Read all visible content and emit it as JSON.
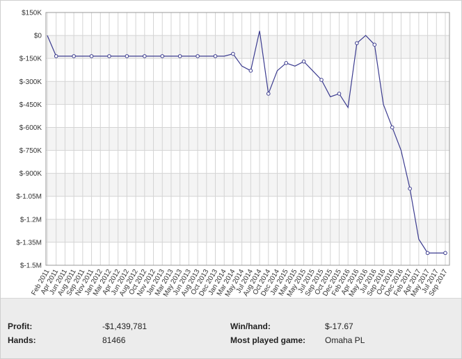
{
  "chart_data": {
    "type": "line",
    "categories": [
      "Feb 2011",
      "Apr 2011",
      "Jun 2011",
      "Aug 2011",
      "Sep 2011",
      "Nov 2011",
      "Jan 2012",
      "Mar 2012",
      "Apr 2012",
      "Jun 2012",
      "Aug 2012",
      "Oct 2012",
      "Nov 2012",
      "Jan 2013",
      "Mar 2013",
      "May 2013",
      "Jun 2013",
      "Aug 2013",
      "Oct 2013",
      "Dec 2013",
      "Jan 2014",
      "Mar 2014",
      "May 2014",
      "Jul 2014",
      "Aug 2014",
      "Oct 2014",
      "Dec 2014",
      "Jan 2015",
      "Mar 2015",
      "May 2015",
      "Jul 2015",
      "Sep 2015",
      "Oct 2015",
      "Dec 2015",
      "Feb 2016",
      "Apr 2016",
      "May 2016",
      "Jul 2016",
      "Sep 2016",
      "Oct 2016",
      "Dec 2016",
      "Feb 2017",
      "Apr 2017",
      "May 2017",
      "Jul 2017",
      "Sep 2017"
    ],
    "series": [
      {
        "color": "#3b3b8f",
        "values": [
          0,
          -135000,
          -135000,
          -135000,
          -135000,
          -135000,
          -135000,
          -135000,
          -135000,
          -135000,
          -135000,
          -135000,
          -135000,
          -135000,
          -135000,
          -135000,
          -135000,
          -135000,
          -135000,
          -135000,
          -135000,
          -120000,
          -200000,
          -230000,
          30000,
          -380000,
          -230000,
          -180000,
          -200000,
          -170000,
          -230000,
          -290000,
          -400000,
          -380000,
          -470000,
          -50000,
          0,
          -60000,
          -450000,
          -600000,
          -750000,
          -1000000,
          -1330000,
          -1420000,
          -1420000,
          -1420000
        ]
      }
    ],
    "ylim": [
      -1500000,
      150000
    ],
    "yticks": [
      {
        "value": 150000,
        "label": "$150K"
      },
      {
        "value": 0,
        "label": "$0"
      },
      {
        "value": -150000,
        "label": "$-150K"
      },
      {
        "value": -300000,
        "label": "$-300K"
      },
      {
        "value": -450000,
        "label": "$-450K"
      },
      {
        "value": -600000,
        "label": "$-600K"
      },
      {
        "value": -750000,
        "label": "$-750K"
      },
      {
        "value": -900000,
        "label": "$-900K"
      },
      {
        "value": -1050000,
        "label": "$-1.05M"
      },
      {
        "value": -1200000,
        "label": "$-1.2M"
      },
      {
        "value": -1350000,
        "label": "$-1.35M"
      },
      {
        "value": -1500000,
        "label": "$-1.5M"
      }
    ],
    "grid": true
  },
  "stats": {
    "rows": [
      [
        "Profit:",
        "-$1,439,781",
        "Win/hand:",
        "$-17.67"
      ],
      [
        "Hands:",
        "81466",
        "Most played game:",
        "Omaha PL"
      ]
    ]
  }
}
